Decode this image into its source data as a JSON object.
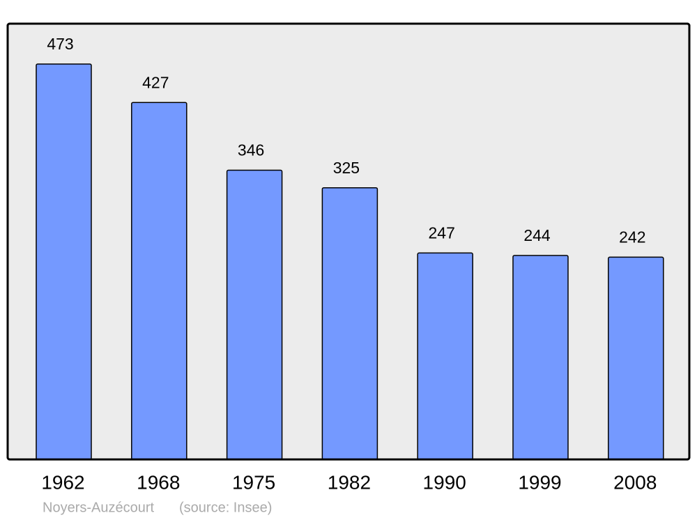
{
  "chart_data": {
    "type": "bar",
    "categories": [
      "1962",
      "1968",
      "1975",
      "1982",
      "1990",
      "1999",
      "2008"
    ],
    "values": [
      473,
      427,
      346,
      325,
      247,
      244,
      242
    ],
    "color": "#7499ff",
    "caption": "Noyers-Auzécourt",
    "source": "(source: Insee)"
  }
}
